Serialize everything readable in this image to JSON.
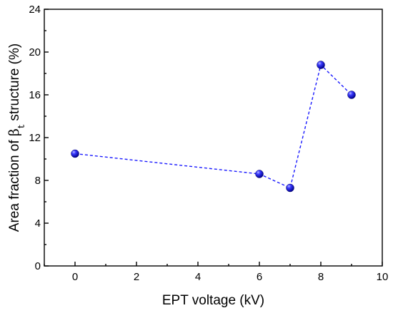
{
  "chart_data": {
    "type": "line",
    "title": "",
    "xlabel": "EPT voltage (kV)",
    "ylabel_prefix": "Area fraction of ",
    "ylabel_symbol": "β",
    "ylabel_subscript": "t",
    "ylabel_suffix": " structure (%)",
    "xlim": [
      -1,
      10
    ],
    "ylim": [
      0,
      24
    ],
    "xticks": [
      0,
      2,
      4,
      6,
      8,
      10
    ],
    "yticks": [
      0,
      4,
      8,
      12,
      16,
      20,
      24
    ],
    "grid": false,
    "legend": "none",
    "series": [
      {
        "x": [
          0,
          6,
          7,
          8,
          9
        ],
        "y": [
          10.5,
          8.6,
          7.3,
          18.8,
          16.0
        ],
        "line_style": "dashed",
        "marker": "sphere",
        "color": "#1a1aff"
      }
    ]
  }
}
